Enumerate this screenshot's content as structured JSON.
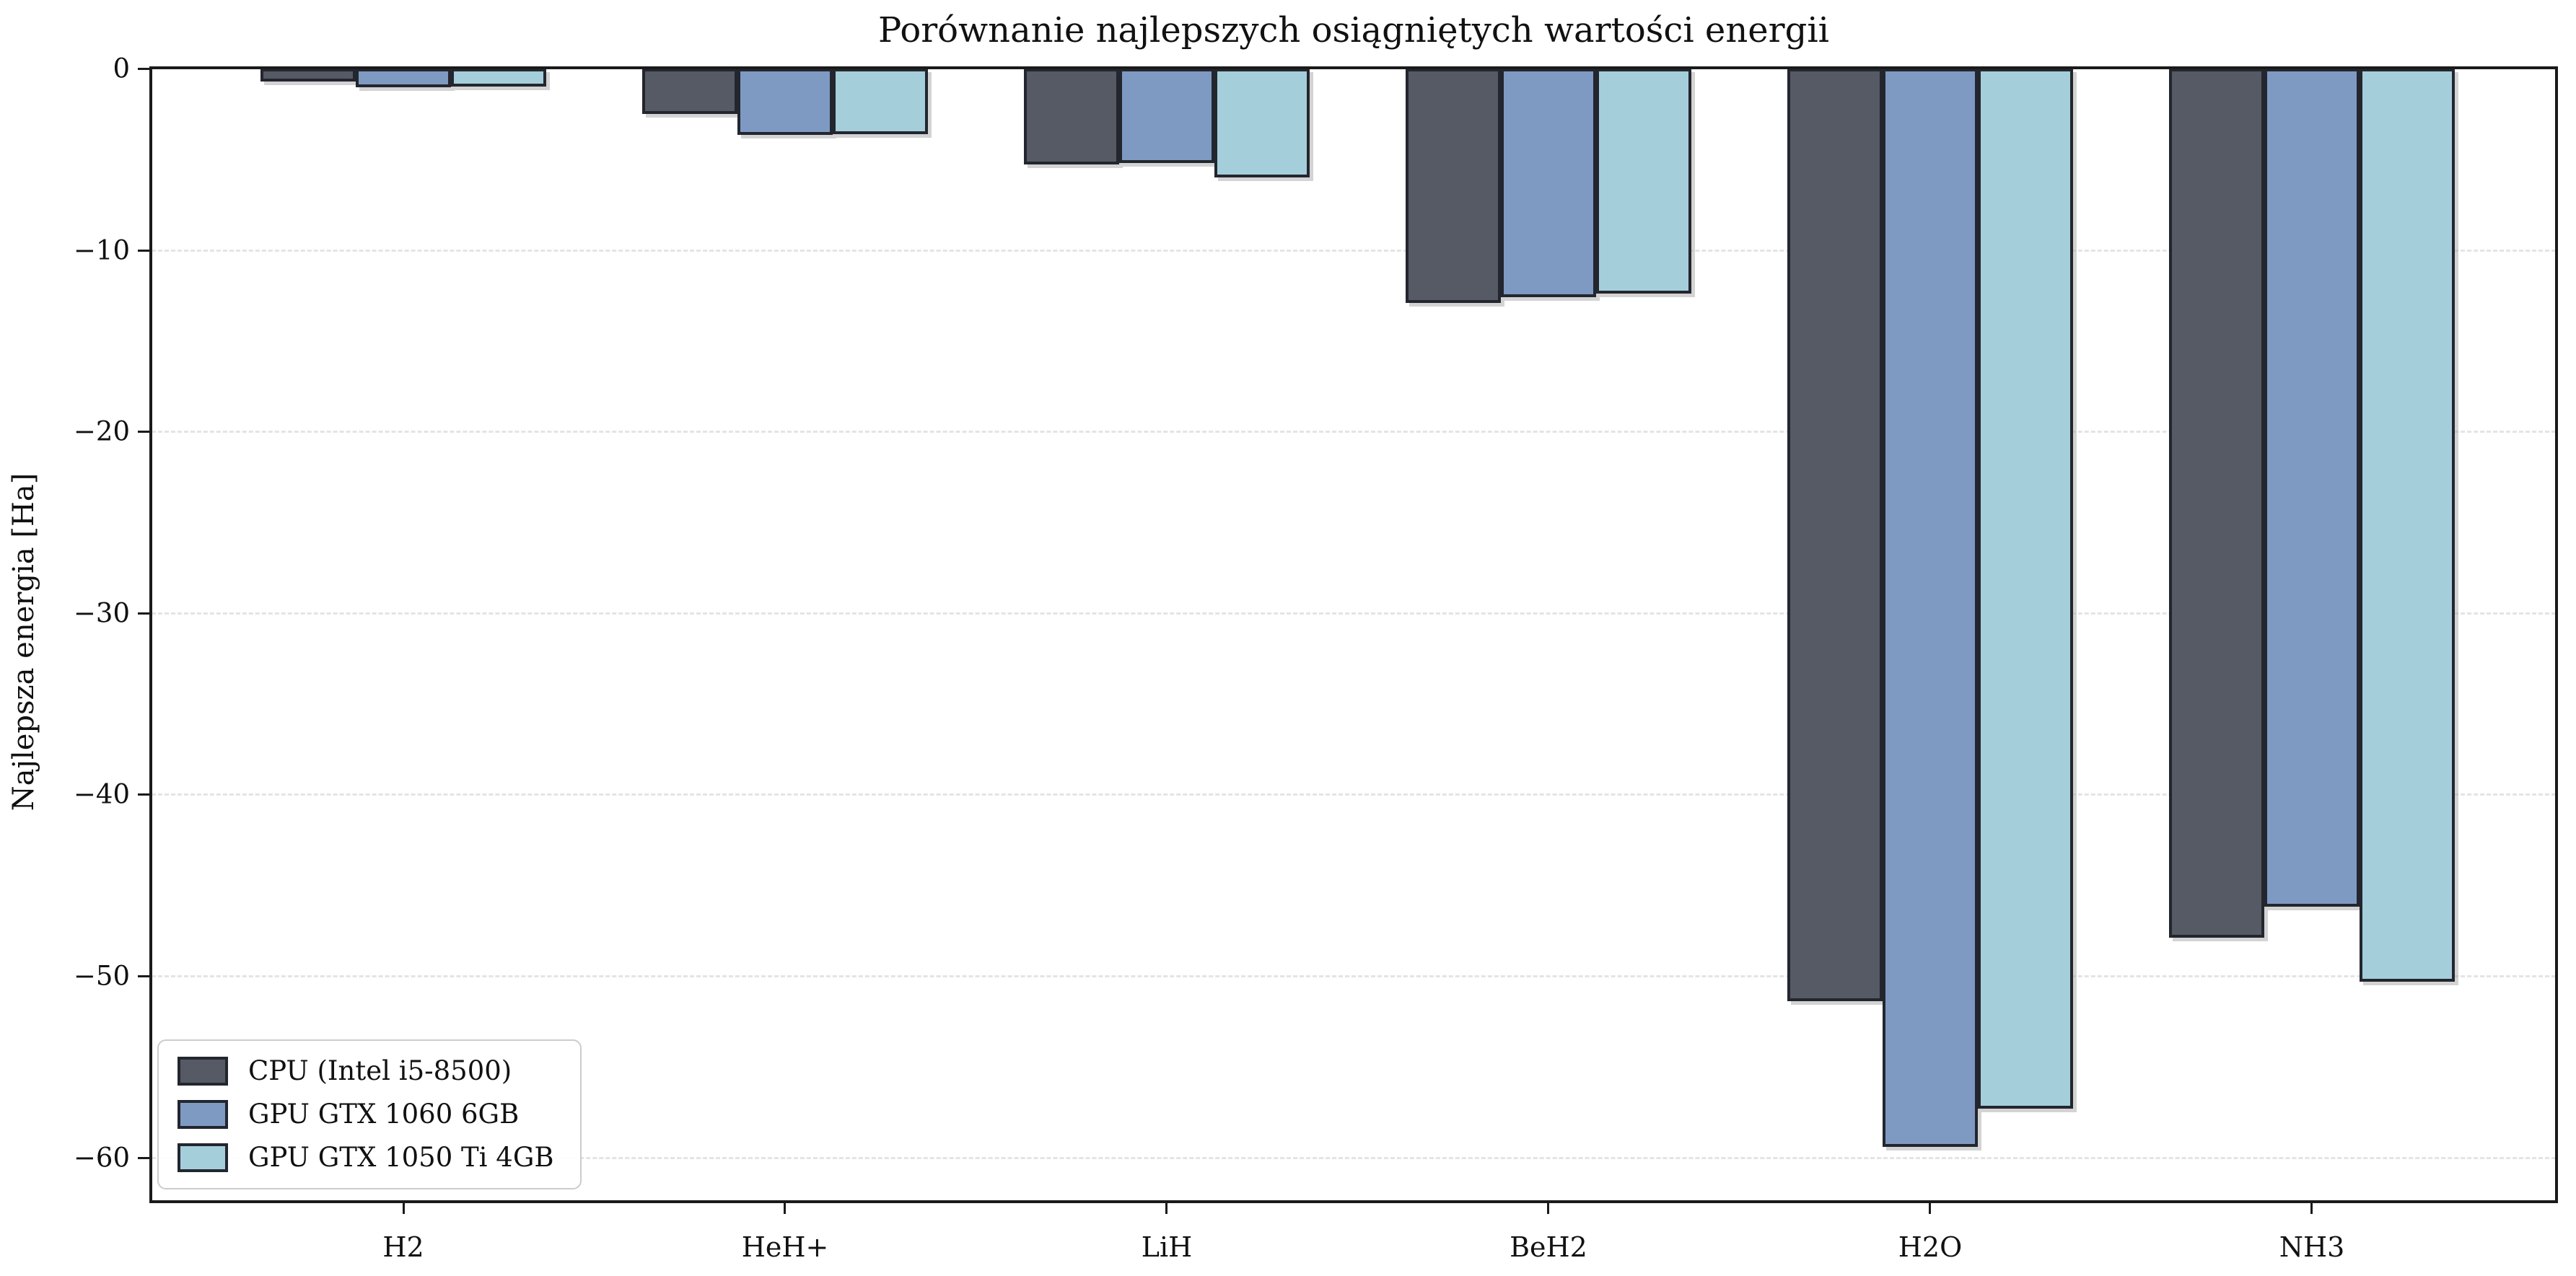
{
  "title": "Porównanie najlepszych osiągniętych wartości energii",
  "chart_data": {
    "type": "bar",
    "title": "Porównanie najlepszych osiągniętych wartości energii",
    "xlabel": "",
    "ylabel": "Najlepsza energia [Ha]",
    "categories": [
      "H2",
      "HeH+",
      "LiH",
      "BeH2",
      "H2O",
      "NH3"
    ],
    "series": [
      {
        "name": "CPU (Intel i5-8500)",
        "color": "#555a64",
        "values": [
          -0.7,
          -2.5,
          -5.3,
          -12.9,
          -51.4,
          -47.9
        ]
      },
      {
        "name": "GPU GTX 1060 6GB",
        "color": "#7e9ac3",
        "values": [
          -1.05,
          -3.65,
          -5.2,
          -12.6,
          -59.4,
          -46.2
        ]
      },
      {
        "name": "GPU GTX 1050 Ti 4GB",
        "color": "#a5cedb",
        "values": [
          -1.0,
          -3.6,
          -6.0,
          -12.4,
          -57.3,
          -50.3
        ]
      }
    ],
    "ylim": [
      -62.4,
      0
    ],
    "yticks": [
      0,
      -10,
      -20,
      -30,
      -40,
      -50,
      -60
    ],
    "ytick_labels": [
      "0",
      "−10",
      "−20",
      "−30",
      "−40",
      "−50",
      "−60"
    ],
    "grid": "horizontal-dashed",
    "legend_position": "lower-left",
    "bar_edge_color": "#23262e"
  }
}
